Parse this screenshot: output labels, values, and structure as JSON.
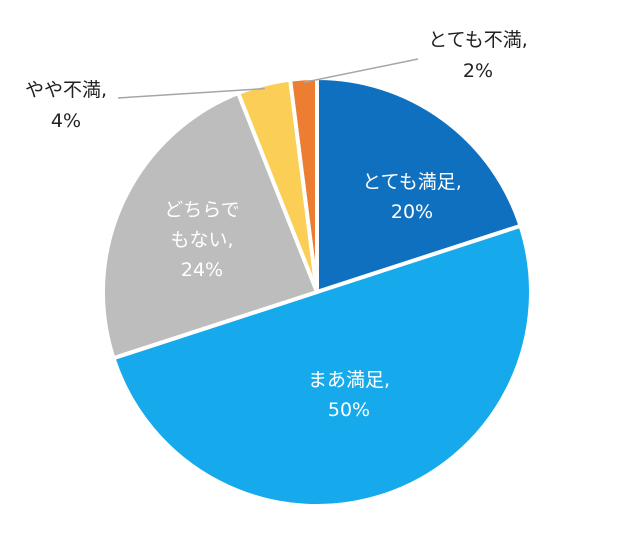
{
  "chart_data": {
    "type": "pie",
    "title": "",
    "slices": [
      {
        "name": "とても満足",
        "value": 20,
        "label_name": "とても満足,",
        "label_value": "20%",
        "color": "#1070c0",
        "label_inside": true
      },
      {
        "name": "まあ満足",
        "value": 50,
        "label_name": "まあ満足,",
        "label_value": "50%",
        "color": "#16aaec",
        "label_inside": true
      },
      {
        "name": "どちらでもない",
        "value": 24,
        "label_name": "どちらで",
        "label_name2": "もない,",
        "label_value": "24%",
        "color": "#bdbdbd",
        "label_inside": true
      },
      {
        "name": "やや不満",
        "value": 4,
        "label_name": "やや不満,",
        "label_value": "4%",
        "color": "#fbcf55",
        "label_inside": false
      },
      {
        "name": "とても不満",
        "value": 2,
        "label_name": "とても不満,",
        "label_value": "2%",
        "color": "#ec7d31",
        "label_inside": false
      }
    ]
  }
}
